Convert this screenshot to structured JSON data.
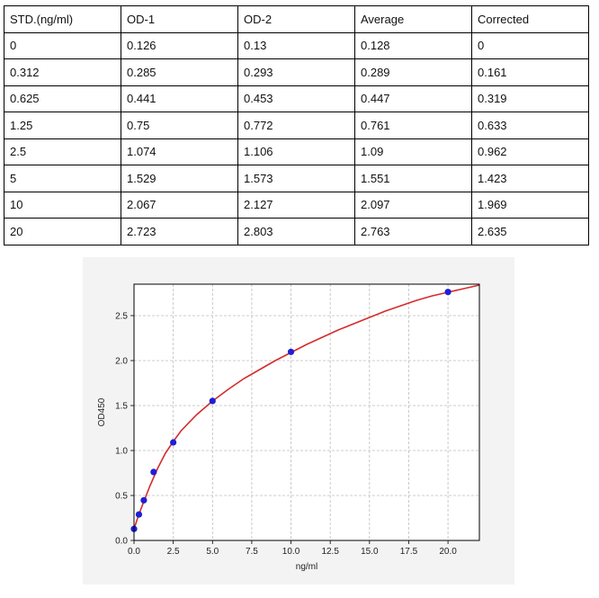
{
  "table": {
    "headers": [
      "STD.(ng/ml)",
      "OD-1",
      "OD-2",
      "Average",
      "Corrected"
    ],
    "rows": [
      [
        "0",
        "0.126",
        "0.13",
        "0.128",
        "0"
      ],
      [
        "0.312",
        "0.285",
        "0.293",
        "0.289",
        "0.161"
      ],
      [
        "0.625",
        "0.441",
        "0.453",
        "0.447",
        "0.319"
      ],
      [
        "1.25",
        "0.75",
        "0.772",
        "0.761",
        "0.633"
      ],
      [
        "2.5",
        "1.074",
        "1.106",
        "1.09",
        "0.962"
      ],
      [
        "5",
        "1.529",
        "1.573",
        "1.551",
        "1.423"
      ],
      [
        "10",
        "2.067",
        "2.127",
        "2.097",
        "1.969"
      ],
      [
        "20",
        "2.723",
        "2.803",
        "2.763",
        "2.635"
      ]
    ]
  },
  "chart_data": {
    "type": "scatter",
    "title": "",
    "xlabel": "ng/ml",
    "ylabel": "OD450",
    "xlim": [
      0,
      22
    ],
    "ylim": [
      0,
      2.85
    ],
    "x_ticks": [
      "0.0",
      "2.5",
      "5.0",
      "7.5",
      "10.0",
      "12.5",
      "15.0",
      "17.5",
      "20.0"
    ],
    "y_ticks": [
      "0.0",
      "0.5",
      "1.0",
      "1.5",
      "2.0",
      "2.5"
    ],
    "grid": true,
    "points": {
      "x": [
        0,
        0.312,
        0.625,
        1.25,
        2.5,
        5,
        10,
        20
      ],
      "y": [
        0.128,
        0.289,
        0.447,
        0.761,
        1.09,
        1.551,
        2.097,
        2.763
      ]
    },
    "fit_curve": {
      "x": [
        0,
        0.25,
        0.5,
        1,
        1.5,
        2,
        2.5,
        3,
        4,
        5,
        6,
        7,
        8,
        9,
        10,
        11,
        12,
        13,
        14,
        15,
        16,
        17,
        18,
        19,
        20,
        21,
        22
      ],
      "y": [
        0.126,
        0.26,
        0.376,
        0.6,
        0.8,
        0.97,
        1.1,
        1.22,
        1.4,
        1.55,
        1.68,
        1.8,
        1.9,
        2.0,
        2.09,
        2.18,
        2.26,
        2.34,
        2.41,
        2.48,
        2.55,
        2.61,
        2.67,
        2.72,
        2.76,
        2.8,
        2.84
      ]
    },
    "point_color": "#1f1fd4",
    "curve_color": "#d42b2b",
    "background_color": "#f3f3f3",
    "grid_color": "#bdbdbd"
  }
}
